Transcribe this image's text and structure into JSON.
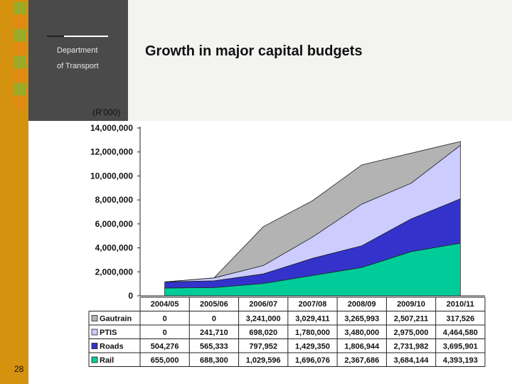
{
  "header": {
    "dept_line1": "Department",
    "dept_line2": "of Transport",
    "title": "Growth in major capital budgets",
    "unit": "(R’000)"
  },
  "slide_number": "28",
  "chart_data": {
    "type": "area",
    "stacked": true,
    "categories": [
      "2004/05",
      "2005/06",
      "2006/07",
      "2007/08",
      "2008/09",
      "2009/10",
      "2010/11"
    ],
    "series": [
      {
        "name": "Rail",
        "color": "#00cc99",
        "values": [
          655000,
          688300,
          1029596,
          1696076,
          2367686,
          3684144,
          4393193
        ],
        "labels": [
          "655,000",
          "688,300",
          "1,029,596",
          "1,696,076",
          "2,367,686",
          "3,684,144",
          "4,393,193"
        ]
      },
      {
        "name": "Roads",
        "color": "#3333cc",
        "values": [
          504276,
          565333,
          797952,
          1429350,
          1806944,
          2731982,
          3695901
        ],
        "labels": [
          "504,276",
          "565,333",
          "797,952",
          "1,429,350",
          "1,806,944",
          "2,731,982",
          "3,695,901"
        ]
      },
      {
        "name": "PTIS",
        "color": "#ccccff",
        "values": [
          0,
          241710,
          698020,
          1780000,
          3480000,
          2975000,
          4464580
        ],
        "labels": [
          "0",
          "241,710",
          "698,020",
          "1,780,000",
          "3,480,000",
          "2,975,000",
          "4,464,580"
        ]
      },
      {
        "name": "Gautrain",
        "color": "#b3b3b3",
        "values": [
          0,
          0,
          3241000,
          3029411,
          3265993,
          2507211,
          317526
        ],
        "labels": [
          "0",
          "0",
          "3,241,000",
          "3,029,411",
          "3,265,993",
          "2,507,211",
          "317,526"
        ]
      }
    ],
    "ylim": [
      0,
      14000000
    ],
    "yticks": [
      0,
      2000000,
      4000000,
      6000000,
      8000000,
      10000000,
      12000000,
      14000000
    ],
    "ytick_labels": [
      "0",
      "2,000,000",
      "4,000,000",
      "6,000,000",
      "8,000,000",
      "10,000,000",
      "12,000,000",
      "14,000,000"
    ],
    "table_rows_order": [
      "Gautrain",
      "PTIS",
      "Roads",
      "Rail"
    ],
    "grid": false,
    "legend": "data-table"
  }
}
